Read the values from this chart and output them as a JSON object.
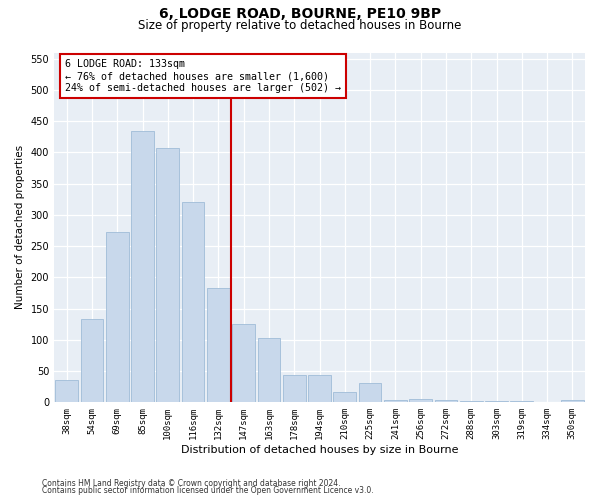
{
  "title_line1": "6, LODGE ROAD, BOURNE, PE10 9BP",
  "title_line2": "Size of property relative to detached houses in Bourne",
  "xlabel": "Distribution of detached houses by size in Bourne",
  "ylabel": "Number of detached properties",
  "bar_labels": [
    "38sqm",
    "54sqm",
    "69sqm",
    "85sqm",
    "100sqm",
    "116sqm",
    "132sqm",
    "147sqm",
    "163sqm",
    "178sqm",
    "194sqm",
    "210sqm",
    "225sqm",
    "241sqm",
    "256sqm",
    "272sqm",
    "288sqm",
    "303sqm",
    "319sqm",
    "334sqm",
    "350sqm"
  ],
  "bar_values": [
    35,
    133,
    272,
    435,
    407,
    320,
    183,
    126,
    103,
    44,
    44,
    17,
    31,
    3,
    5,
    3,
    2,
    2,
    2,
    1,
    4
  ],
  "bar_color": "#c8d8eb",
  "bar_edge_color": "#a0bcd8",
  "vline_x": 6.5,
  "vline_color": "#cc0000",
  "annotation_text": "6 LODGE ROAD: 133sqm\n← 76% of detached houses are smaller (1,600)\n24% of semi-detached houses are larger (502) →",
  "annotation_box_facecolor": "#ffffff",
  "annotation_box_edgecolor": "#cc0000",
  "ylim": [
    0,
    560
  ],
  "yticks": [
    0,
    50,
    100,
    150,
    200,
    250,
    300,
    350,
    400,
    450,
    500,
    550
  ],
  "plot_bg_color": "#e8eef5",
  "footnote_line1": "Contains HM Land Registry data © Crown copyright and database right 2024.",
  "footnote_line2": "Contains public sector information licensed under the Open Government Licence v3.0."
}
